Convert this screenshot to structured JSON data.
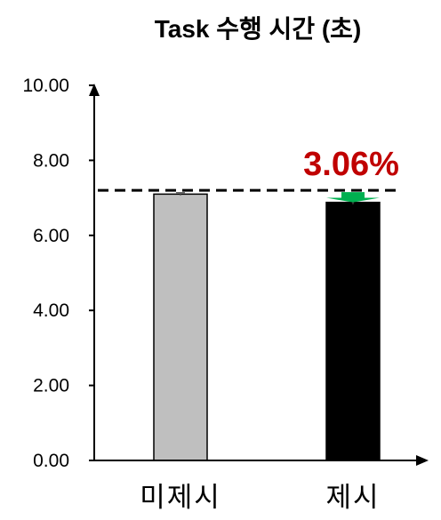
{
  "chart_data": {
    "type": "bar",
    "title": "Task 수행 시간 (초)",
    "xlabel": "",
    "ylabel": "",
    "ylim": [
      0,
      10
    ],
    "y_ticks": [
      "0.00",
      "2.00",
      "4.00",
      "6.00",
      "8.00",
      "10.00"
    ],
    "categories": [
      "미제시",
      "제시"
    ],
    "values": [
      7.1,
      6.88
    ],
    "bar_colors": [
      "#bfbfbf",
      "#000000"
    ],
    "error": [
      0.04,
      0.05
    ],
    "reference_line": {
      "value": 7.2,
      "style": "dashed",
      "color": "#000000"
    },
    "annotation": {
      "text": "3.06%",
      "color": "#c00000",
      "arrow_color": "#00b050",
      "direction": "down"
    },
    "grid": false,
    "legend": "none"
  }
}
